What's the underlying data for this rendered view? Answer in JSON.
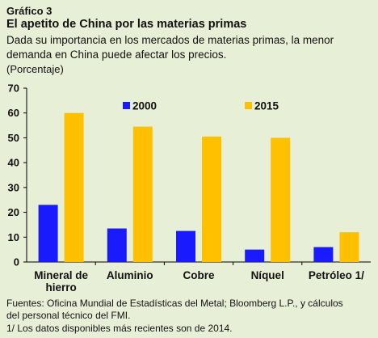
{
  "header": {
    "label": "Gráfico 3",
    "title": "El apetito de China por las materias primas",
    "subtitle_line1": "Dada su importancia  en los mercados de materias primas, la menor",
    "subtitle_line2": "demanda en China puede afectar los precios.",
    "unit": "(Porcentaje)"
  },
  "footer": {
    "line1": "Fuentes: Oficina Mundial de Estadísticas del Metal; Bloomberg L.P., y cálculos",
    "line2": "del personal técnico del FMI.",
    "line3": "1/ Los datos disponibles más recientes son de 2014."
  },
  "chart_data": {
    "type": "bar",
    "categories": [
      [
        "Mineral de",
        "hierro"
      ],
      [
        "Aluminio"
      ],
      [
        "Cobre"
      ],
      [
        "Níquel"
      ],
      [
        "Petróleo 1/"
      ]
    ],
    "series": [
      {
        "name": "2000",
        "color": "#1a1aff",
        "values": [
          23,
          13.5,
          12.5,
          5,
          6
        ]
      },
      {
        "name": "2015",
        "color": "#ffc000",
        "values": [
          60,
          54.5,
          50.5,
          50,
          12
        ]
      }
    ],
    "ylim": [
      0,
      70
    ],
    "yticks": [
      0,
      10,
      20,
      30,
      40,
      50,
      60,
      70
    ],
    "legend_position": "top",
    "grid": false
  }
}
